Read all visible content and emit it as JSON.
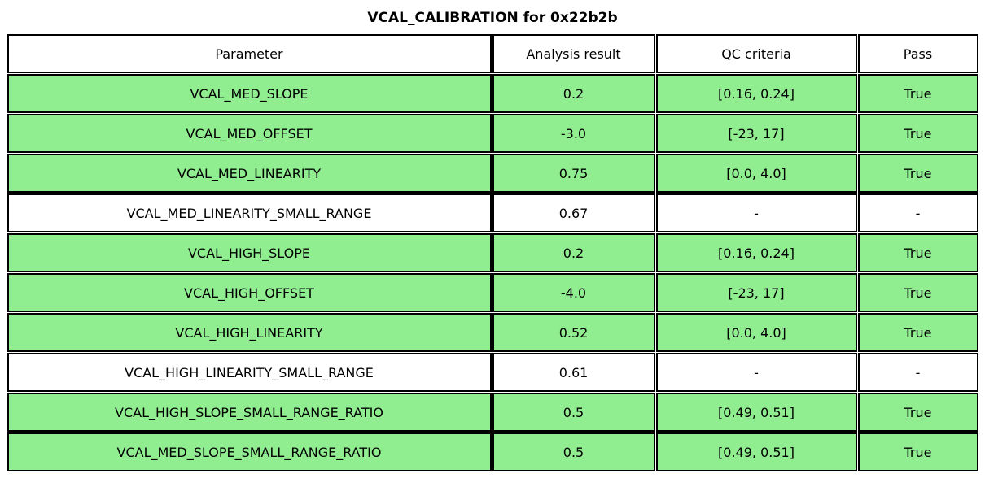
{
  "title": "VCAL_CALIBRATION for 0x22b2b",
  "chart_data": {
    "type": "table",
    "title": "VCAL_CALIBRATION for 0x22b2b",
    "columns": [
      "Parameter",
      "Analysis result",
      "QC criteria",
      "Pass"
    ],
    "rows": [
      {
        "parameter": "VCAL_MED_SLOPE",
        "analysis_result": "0.2",
        "qc_criteria": "[0.16, 0.24]",
        "pass": "True",
        "highlight": true
      },
      {
        "parameter": "VCAL_MED_OFFSET",
        "analysis_result": "-3.0",
        "qc_criteria": "[-23, 17]",
        "pass": "True",
        "highlight": true
      },
      {
        "parameter": "VCAL_MED_LINEARITY",
        "analysis_result": "0.75",
        "qc_criteria": "[0.0, 4.0]",
        "pass": "True",
        "highlight": true
      },
      {
        "parameter": "VCAL_MED_LINEARITY_SMALL_RANGE",
        "analysis_result": "0.67",
        "qc_criteria": "-",
        "pass": "-",
        "highlight": false
      },
      {
        "parameter": "VCAL_HIGH_SLOPE",
        "analysis_result": "0.2",
        "qc_criteria": "[0.16, 0.24]",
        "pass": "True",
        "highlight": true
      },
      {
        "parameter": "VCAL_HIGH_OFFSET",
        "analysis_result": "-4.0",
        "qc_criteria": "[-23, 17]",
        "pass": "True",
        "highlight": true
      },
      {
        "parameter": "VCAL_HIGH_LINEARITY",
        "analysis_result": "0.52",
        "qc_criteria": "[0.0, 4.0]",
        "pass": "True",
        "highlight": true
      },
      {
        "parameter": "VCAL_HIGH_LINEARITY_SMALL_RANGE",
        "analysis_result": "0.61",
        "qc_criteria": "-",
        "pass": "-",
        "highlight": false
      },
      {
        "parameter": "VCAL_HIGH_SLOPE_SMALL_RANGE_RATIO",
        "analysis_result": "0.5",
        "qc_criteria": "[0.49, 0.51]",
        "pass": "True",
        "highlight": true
      },
      {
        "parameter": "VCAL_MED_SLOPE_SMALL_RANGE_RATIO",
        "analysis_result": "0.5",
        "qc_criteria": "[0.49, 0.51]",
        "pass": "True",
        "highlight": true
      }
    ],
    "colors": {
      "pass_row_bg": "#90ee90",
      "neutral_row_bg": "#ffffff",
      "header_bg": "#ffffff",
      "border": "#000000",
      "text": "#000000"
    },
    "layout": {
      "grid": true,
      "header_row": true,
      "column_alignment": [
        "center",
        "center",
        "center",
        "center"
      ]
    }
  }
}
